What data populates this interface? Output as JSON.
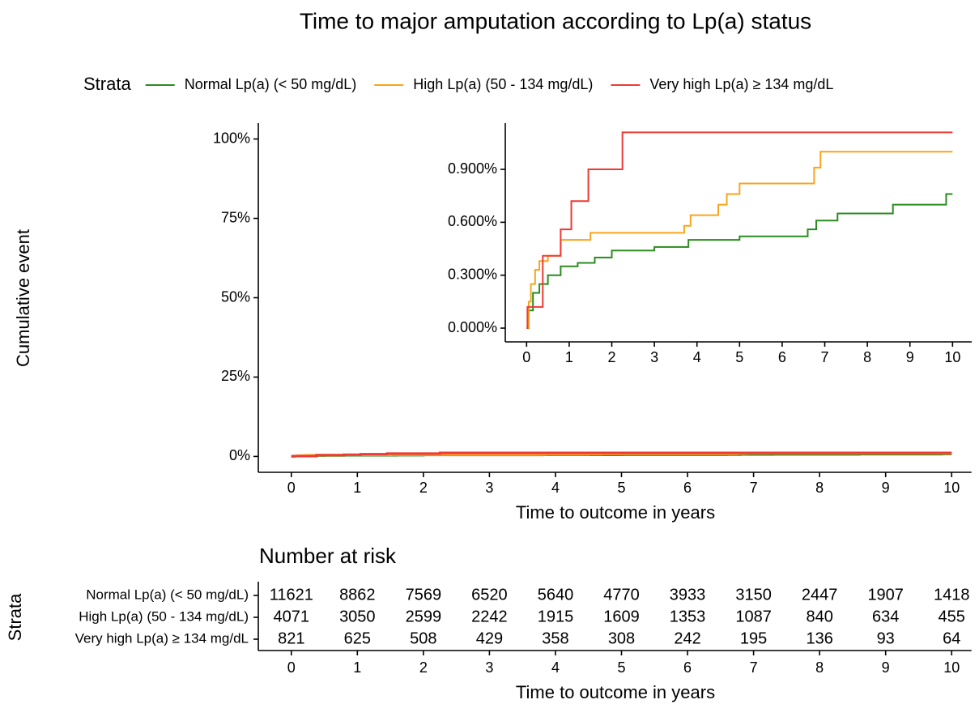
{
  "chart_data": [
    {
      "type": "step",
      "title": "Time to major amputation according to Lp(a) status",
      "legend_title": "Strata",
      "x_label": "Time to outcome in years",
      "y_label": "Cumulative event",
      "xlim": [
        -0.5,
        10.3
      ],
      "xticks": [
        0,
        1,
        2,
        3,
        4,
        5,
        6,
        7,
        8,
        9,
        10
      ],
      "ylim": [
        -5,
        105
      ],
      "yticks": [
        {
          "value": 0,
          "label": "0%"
        },
        {
          "value": 25,
          "label": "25%"
        },
        {
          "value": 50,
          "label": "50%"
        },
        {
          "value": 75,
          "label": "75%"
        },
        {
          "value": 100,
          "label": "100%"
        }
      ],
      "series": [
        {
          "name": "Normal Lp(a) (< 50 mg/dL)",
          "color": "#2a8c1f",
          "x": [
            0,
            0.05,
            0.15,
            0.3,
            0.5,
            0.8,
            1.2,
            1.6,
            2,
            3,
            3.8,
            5,
            6.6,
            6.8,
            7.3,
            8.6,
            9.85,
            10
          ],
          "values": [
            0,
            0.1,
            0.2,
            0.25,
            0.3,
            0.35,
            0.37,
            0.4,
            0.44,
            0.46,
            0.5,
            0.52,
            0.56,
            0.61,
            0.65,
            0.7,
            0.76,
            0.76
          ]
        },
        {
          "name": "High Lp(a) (50 - 134 mg/dL)",
          "color": "#f9a51b",
          "x": [
            0,
            0.05,
            0.1,
            0.2,
            0.3,
            0.5,
            0.8,
            1.5,
            3.7,
            3.85,
            4.5,
            4.7,
            5,
            6.75,
            6.9,
            10
          ],
          "values": [
            0,
            0.15,
            0.25,
            0.33,
            0.38,
            0.41,
            0.5,
            0.54,
            0.58,
            0.64,
            0.7,
            0.76,
            0.82,
            0.91,
            1,
            1
          ]
        },
        {
          "name": "Very high Lp(a) ≥ 134 mg/dL",
          "color": "#ee3a36",
          "x": [
            0,
            0.02,
            0.38,
            0.8,
            1.05,
            1.45,
            2.25,
            10
          ],
          "values": [
            0,
            0.12,
            0.41,
            0.56,
            0.72,
            0.9,
            1.11,
            1.11
          ]
        }
      ],
      "inset": {
        "xlim": [
          -0.5,
          10.45
        ],
        "xticks": [
          0,
          1,
          2,
          3,
          4,
          5,
          6,
          7,
          8,
          9,
          10
        ],
        "ylim": [
          -0.078,
          1.162
        ],
        "yticks": [
          {
            "value": 0,
            "label": "0.000%"
          },
          {
            "value": 0.3,
            "label": "0.300%"
          },
          {
            "value": 0.6,
            "label": "0.600%"
          },
          {
            "value": 0.9,
            "label": "0.900%"
          }
        ]
      }
    },
    {
      "type": "risk_table",
      "title": "Number at risk",
      "y_label": "Strata",
      "x_label": "Time to outcome in years",
      "xlim": [
        -0.5,
        10.3
      ],
      "xticks": [
        0,
        1,
        2,
        3,
        4,
        5,
        6,
        7,
        8,
        9,
        10
      ],
      "rows": [
        {
          "name": "Normal Lp(a) (< 50 mg/dL)",
          "color": "#2a8c1f",
          "values": [
            11621,
            8862,
            7569,
            6520,
            5640,
            4770,
            3933,
            3150,
            2447,
            1907,
            1418
          ]
        },
        {
          "name": "High Lp(a) (50 - 134 mg/dL)",
          "color": "#f9a51b",
          "values": [
            4071,
            3050,
            2599,
            2242,
            1915,
            1609,
            1353,
            1087,
            840,
            634,
            455
          ]
        },
        {
          "name": "Very high Lp(a) ≥ 134 mg/dL",
          "color": "#ee3a36",
          "values": [
            821,
            625,
            508,
            429,
            358,
            308,
            242,
            195,
            136,
            93,
            64
          ]
        }
      ]
    }
  ]
}
